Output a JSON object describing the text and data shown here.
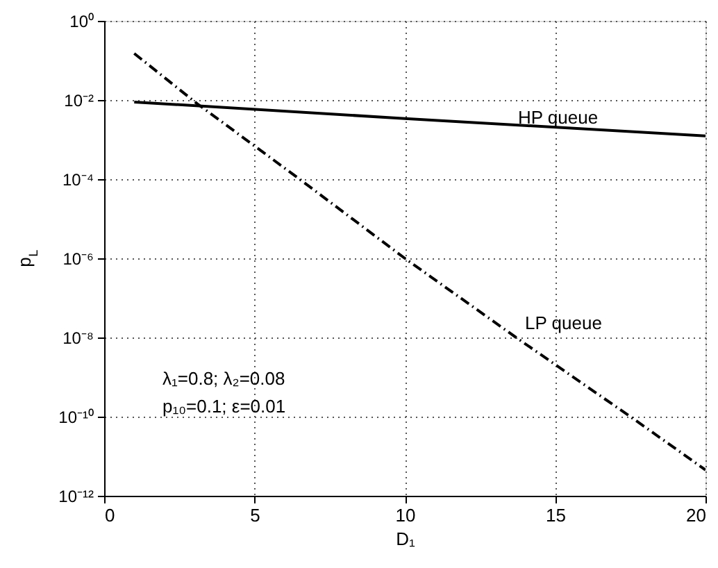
{
  "chart_data": {
    "type": "line",
    "xlabel": "D₁",
    "ylabel": "p$_{L}$",
    "xlim": [
      0,
      20
    ],
    "xticks": [
      0,
      5,
      10,
      15,
      20
    ],
    "ylim": [
      1e-12,
      1
    ],
    "log": true,
    "yticks": [
      {
        "value": 1e-12,
        "label": "10⁻¹²"
      },
      {
        "value": 1e-10,
        "label": "10⁻¹⁰"
      },
      {
        "value": 1e-08,
        "label": "10⁻⁸"
      },
      {
        "value": 1e-06,
        "label": "10⁻⁶"
      },
      {
        "value": 0.0001,
        "label": "10⁻⁴"
      },
      {
        "value": 0.01,
        "label": "10⁻²"
      },
      {
        "value": 1,
        "label": "10⁰"
      }
    ],
    "grid": true,
    "series": [
      {
        "color": "#000000",
        "line_style": "solid",
        "x": [
          1,
          10,
          20
        ],
        "values": [
          0.0089,
          0.0034,
          0.00123
        ]
      },
      {
        "color": "#000000",
        "line_style": "dashed",
        "x": [
          1,
          3.1,
          6.5,
          10,
          13.7,
          17.5,
          20
        ],
        "values": [
          0.15,
          0.008,
          0.0001,
          1e-06,
          1e-08,
          1e-10,
          4.5e-12
        ]
      }
    ],
    "annotations": [
      "HP queue",
      "LP queue",
      "λ₁=0.8; λ₂=0.08",
      "p₁₀=0.1; ε=0.01"
    ]
  }
}
